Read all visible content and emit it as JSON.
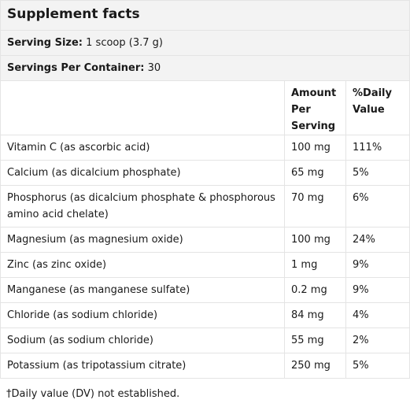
{
  "title": "Supplement facts",
  "serving_size": {
    "label": "Serving Size:",
    "value": "1 scoop (3.7 g)"
  },
  "servings_per_container": {
    "label": "Servings Per Container:",
    "value": "30"
  },
  "columns": {
    "amount": "Amount Per Serving",
    "dv": "%Daily Value"
  },
  "rows": [
    {
      "nutrient": "Vitamin C (as ascorbic acid)",
      "amount": "100 mg",
      "dv": "111%"
    },
    {
      "nutrient": "Calcium (as dicalcium phosphate)",
      "amount": "65 mg",
      "dv": "5%"
    },
    {
      "nutrient": "Phosphorus (as dicalcium phosphate & phosphorous amino acid chelate)",
      "amount": "70 mg",
      "dv": "6%"
    },
    {
      "nutrient": "Magnesium (as magnesium oxide)",
      "amount": "100 mg",
      "dv": "24%"
    },
    {
      "nutrient": "Zinc (as zinc oxide)",
      "amount": "1 mg",
      "dv": "9%"
    },
    {
      "nutrient": "Manganese (as manganese sulfate)",
      "amount": "0.2 mg",
      "dv": "9%"
    },
    {
      "nutrient": "Chloride (as sodium chloride)",
      "amount": "84 mg",
      "dv": "4%"
    },
    {
      "nutrient": "Sodium (as sodium chloride)",
      "amount": "55 mg",
      "dv": "2%"
    },
    {
      "nutrient": "Potassium (as tripotassium citrate)",
      "amount": "250 mg",
      "dv": "5%"
    }
  ],
  "footnote": "†Daily value (DV) not established."
}
